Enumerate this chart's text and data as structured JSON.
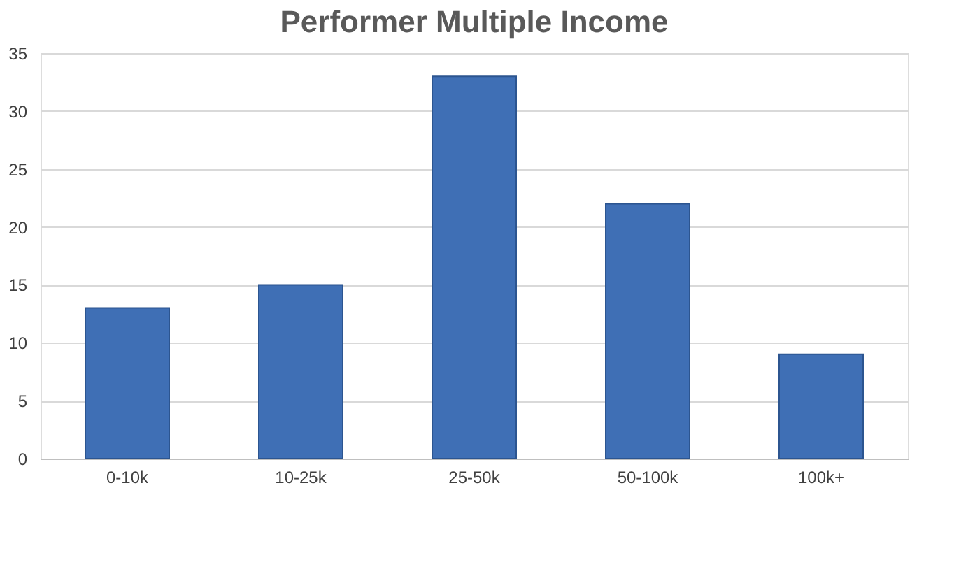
{
  "chart_data": {
    "type": "bar",
    "title": "Performer Multiple Income",
    "categories": [
      "0-10k",
      "10-25k",
      "25-50k",
      "50-100k",
      "100k+"
    ],
    "values": [
      13,
      15,
      33,
      22,
      9
    ],
    "color": "#3f6fb5",
    "ylim": [
      0,
      35
    ],
    "yticks": [
      0,
      5,
      10,
      15,
      20,
      25,
      30,
      35
    ],
    "grid": "y"
  }
}
